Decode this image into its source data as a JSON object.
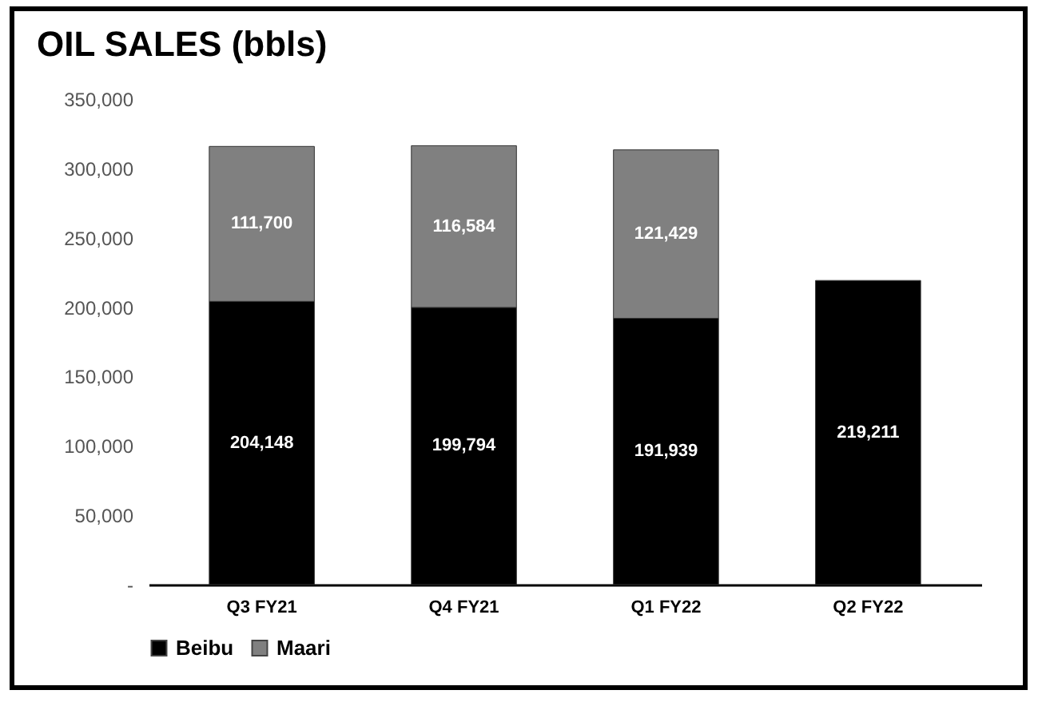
{
  "chart_data": {
    "type": "bar",
    "title": "OIL SALES (bbls)",
    "categories": [
      "Q3 FY21",
      "Q4 FY21",
      "Q1 FY22",
      "Q2 FY22"
    ],
    "stacked": true,
    "series": [
      {
        "name": "Beibu",
        "color": "#000000",
        "values": [
          204148,
          199794,
          191939,
          219211
        ],
        "value_labels": [
          "204,148",
          "199,794",
          "191,939",
          "219,211"
        ]
      },
      {
        "name": "Maari",
        "color": "#808080",
        "values": [
          111700,
          116584,
          121429,
          null
        ],
        "value_labels": [
          "111,700",
          "116,584",
          "121,429",
          null
        ]
      }
    ],
    "ylim": [
      0,
      350000
    ],
    "yticks": [
      {
        "value": 0,
        "label": "-"
      },
      {
        "value": 50000,
        "label": "50,000"
      },
      {
        "value": 100000,
        "label": "100,000"
      },
      {
        "value": 150000,
        "label": "150,000"
      },
      {
        "value": 200000,
        "label": "200,000"
      },
      {
        "value": 250000,
        "label": "250,000"
      },
      {
        "value": 300000,
        "label": "300,000"
      },
      {
        "value": 350000,
        "label": "350,000"
      }
    ],
    "legend": "bottom",
    "grid": false
  }
}
